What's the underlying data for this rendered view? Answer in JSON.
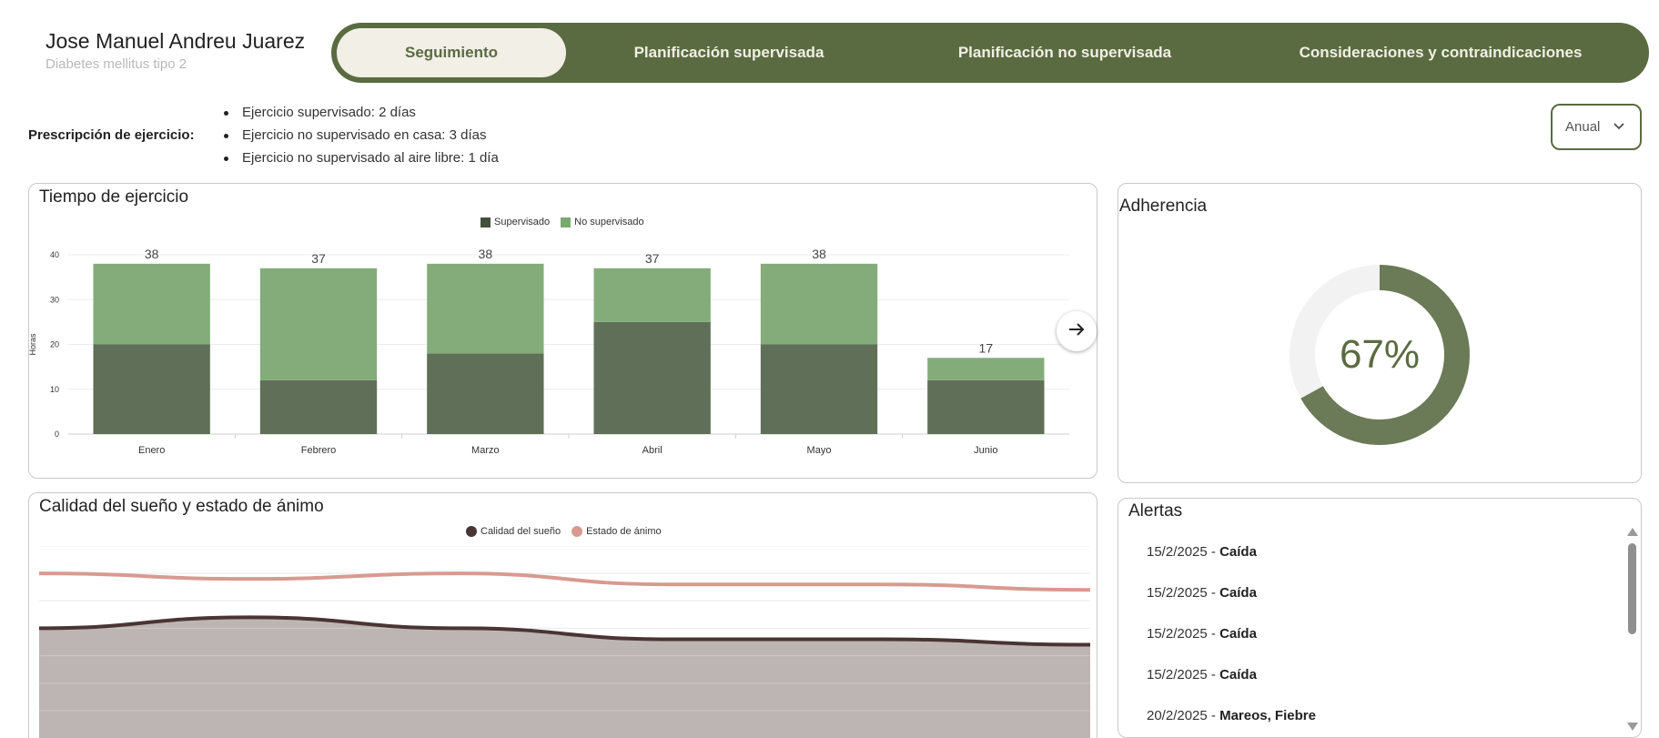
{
  "patient": {
    "name": "Jose Manuel Andreu Juarez",
    "condition": "Diabetes mellitus tipo 2"
  },
  "tabs": [
    {
      "label": "Seguimiento",
      "active": true
    },
    {
      "label": "Planificación supervisada",
      "active": false
    },
    {
      "label": "Planificación no supervisada",
      "active": false
    },
    {
      "label": "Consideraciones y contraindicaciones",
      "active": false
    }
  ],
  "prescription": {
    "label": "Prescripción de ejercicio:",
    "items": [
      "Ejercicio supervisado: 2 días",
      "Ejercicio no supervisado en casa: 3 días",
      "Ejercicio no supervisado al aire libre: 1 día"
    ]
  },
  "period_select": {
    "value": "Anual",
    "icon": "chevron-down-icon"
  },
  "exercise_card": {
    "title": "Tiempo de ejercicio",
    "next_icon": "arrow-right-icon",
    "chart_data": {
      "type": "bar",
      "stacked": true,
      "categories": [
        "Enero",
        "Febrero",
        "Marzo",
        "Abril",
        "Mayo",
        "Junio"
      ],
      "series": [
        {
          "name": "Supervisado",
          "values": [
            20,
            12,
            18,
            25,
            20,
            12
          ],
          "color": "#5f6f58"
        },
        {
          "name": "No supervisado",
          "values": [
            18,
            25,
            20,
            12,
            18,
            5
          ],
          "color": "#84ac7a"
        }
      ],
      "totals": [
        38,
        37,
        38,
        37,
        38,
        17
      ],
      "ylabel": "Horas",
      "xlabel": "",
      "ylim": [
        0,
        40
      ],
      "yticks": [
        0,
        10,
        20,
        30,
        40
      ],
      "grid": true,
      "legend": "top-center"
    }
  },
  "adherence_card": {
    "title": "Adherencia",
    "value_label": "67%",
    "chart_data": {
      "type": "pie",
      "donut": true,
      "values": [
        67,
        33
      ],
      "colors": [
        "#6b7a57",
        "#f2f2f2"
      ]
    }
  },
  "sleep_card": {
    "title": "Calidad del sueño y estado de ánimo",
    "chart_data": {
      "type": "area",
      "series": [
        {
          "name": "Calidad del sueño",
          "values": [
            4.0,
            4.4,
            4.0,
            3.6,
            3.6,
            3.4
          ],
          "color": "#4a3434",
          "fill": "#bdb5b3"
        },
        {
          "name": "Estado de ánimo",
          "values": [
            6.0,
            5.8,
            6.0,
            5.6,
            5.6,
            5.4
          ],
          "color": "#d89a90"
        }
      ],
      "ylim": [
        0,
        7
      ],
      "grid": true,
      "legend": "top-center"
    }
  },
  "alerts_card": {
    "title": "Alertas",
    "items": [
      {
        "date": "15/2/2025",
        "sep": " - ",
        "text": "Caída"
      },
      {
        "date": "15/2/2025",
        "sep": " - ",
        "text": "Caída"
      },
      {
        "date": "15/2/2025",
        "sep": " - ",
        "text": "Caída"
      },
      {
        "date": "15/2/2025",
        "sep": " - ",
        "text": "Caída"
      },
      {
        "date": "20/2/2025",
        "sep": " - ",
        "text": "Mareos, Fiebre"
      }
    ]
  }
}
